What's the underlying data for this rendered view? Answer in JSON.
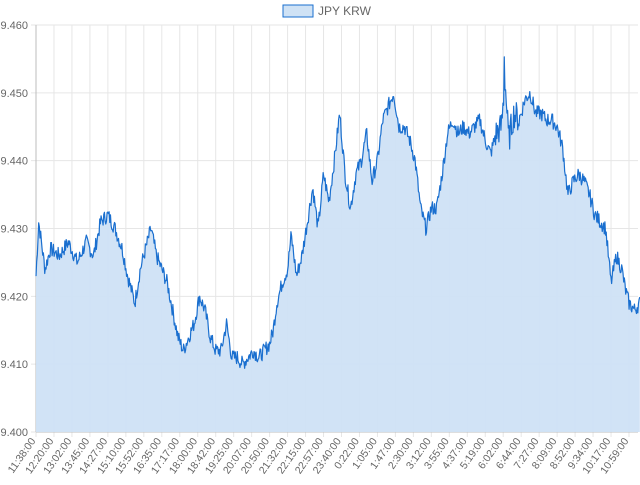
{
  "chart_data": {
    "type": "area",
    "legend": {
      "label": "JPY KRW",
      "position": "top-center"
    },
    "colors": {
      "line": "#1a6fcf",
      "fill": "#cfe2f5",
      "grid": "#e6e6e6",
      "text": "#666666"
    },
    "ylim": [
      9.4,
      9.46
    ],
    "y_ticks": [
      "9.460",
      "9.450",
      "9.440",
      "9.430",
      "9.420",
      "9.410",
      "9.400"
    ],
    "x_ticks": [
      "11:38:00",
      "12:20:00",
      "13:02:00",
      "13:45:00",
      "14:27:00",
      "15:10:00",
      "15:52:00",
      "16:35:00",
      "17:17:00",
      "18:00:00",
      "18:42:00",
      "19:25:00",
      "20:07:00",
      "20:50:00",
      "21:32:00",
      "22:15:00",
      "22:57:00",
      "23:40:00",
      "0:22:00",
      "1:05:00",
      "1:47:00",
      "2:30:00",
      "3:12:00",
      "3:55:00",
      "4:37:00",
      "5:19:00",
      "6:02:00",
      "6:44:00",
      "7:27:00",
      "8:09:00",
      "8:52:00",
      "9:34:00",
      "10:17:00",
      "10:59:00"
    ],
    "grid": true,
    "series": [
      {
        "name": "JPY KRW",
        "keypoints": [
          [
            0,
            9.423
          ],
          [
            0.15,
            9.431
          ],
          [
            0.3,
            9.428
          ],
          [
            0.5,
            9.424
          ],
          [
            0.8,
            9.427
          ],
          [
            1.3,
            9.426
          ],
          [
            1.8,
            9.428
          ],
          [
            2.3,
            9.425
          ],
          [
            2.8,
            9.428
          ],
          [
            3.2,
            9.426
          ],
          [
            3.6,
            9.431
          ],
          [
            4.0,
            9.432
          ],
          [
            4.4,
            9.43
          ],
          [
            4.8,
            9.427
          ],
          [
            5.1,
            9.423
          ],
          [
            5.5,
            9.419
          ],
          [
            5.8,
            9.424
          ],
          [
            6.1,
            9.427
          ],
          [
            6.4,
            9.43
          ],
          [
            6.7,
            9.426
          ],
          [
            7.0,
            9.424
          ],
          [
            7.3,
            9.422
          ],
          [
            7.6,
            9.418
          ],
          [
            7.9,
            9.414
          ],
          [
            8.2,
            9.412
          ],
          [
            8.5,
            9.414
          ],
          [
            8.8,
            9.416
          ],
          [
            9.1,
            9.42
          ],
          [
            9.4,
            9.418
          ],
          [
            9.7,
            9.414
          ],
          [
            10.0,
            9.412
          ],
          [
            10.3,
            9.412
          ],
          [
            10.6,
            9.416
          ],
          [
            10.9,
            9.411
          ],
          [
            11.2,
            9.411
          ],
          [
            11.5,
            9.41
          ],
          [
            11.8,
            9.411
          ],
          [
            12.1,
            9.412
          ],
          [
            12.4,
            9.411
          ],
          [
            12.7,
            9.412
          ],
          [
            13.0,
            9.413
          ],
          [
            13.2,
            9.415
          ],
          [
            13.4,
            9.419
          ],
          [
            13.7,
            9.422
          ],
          [
            14.0,
            9.424
          ],
          [
            14.2,
            9.429
          ],
          [
            14.5,
            9.423
          ],
          [
            14.8,
            9.426
          ],
          [
            15.1,
            9.431
          ],
          [
            15.4,
            9.436
          ],
          [
            15.7,
            9.43
          ],
          [
            16.0,
            9.438
          ],
          [
            16.3,
            9.434
          ],
          [
            16.6,
            9.44
          ],
          [
            16.9,
            9.447
          ],
          [
            17.2,
            9.438
          ],
          [
            17.5,
            9.433
          ],
          [
            17.8,
            9.438
          ],
          [
            18.1,
            9.44
          ],
          [
            18.4,
            9.444
          ],
          [
            18.7,
            9.437
          ],
          [
            19.0,
            9.44
          ],
          [
            19.3,
            9.446
          ],
          [
            19.6,
            9.448
          ],
          [
            19.9,
            9.45
          ],
          [
            20.2,
            9.445
          ],
          [
            20.5,
            9.445
          ],
          [
            20.8,
            9.443
          ],
          [
            21.1,
            9.44
          ],
          [
            21.4,
            9.433
          ],
          [
            21.7,
            9.43
          ],
          [
            22.0,
            9.433
          ],
          [
            22.3,
            9.433
          ],
          [
            22.6,
            9.438
          ],
          [
            22.9,
            9.444
          ],
          [
            23.2,
            9.446
          ],
          [
            23.5,
            9.444
          ],
          [
            23.8,
            9.445
          ],
          [
            24.1,
            9.444
          ],
          [
            24.4,
            9.445
          ],
          [
            24.7,
            9.446
          ],
          [
            25.0,
            9.443
          ],
          [
            25.3,
            9.441
          ],
          [
            25.6,
            9.444
          ],
          [
            25.9,
            9.445
          ],
          [
            26.1,
            9.452
          ],
          [
            26.3,
            9.443
          ],
          [
            26.6,
            9.447
          ],
          [
            26.9,
            9.446
          ],
          [
            27.2,
            9.449
          ],
          [
            27.5,
            9.45
          ],
          [
            27.8,
            9.447
          ],
          [
            28.1,
            9.447
          ],
          [
            28.4,
            9.446
          ],
          [
            28.7,
            9.446
          ],
          [
            29.0,
            9.445
          ],
          [
            29.3,
            9.442
          ],
          [
            29.6,
            9.435
          ],
          [
            29.9,
            9.437
          ],
          [
            30.2,
            9.438
          ],
          [
            30.5,
            9.437
          ],
          [
            30.8,
            9.435
          ],
          [
            31.1,
            9.432
          ],
          [
            31.4,
            9.431
          ],
          [
            31.7,
            9.43
          ],
          [
            32.0,
            9.422
          ],
          [
            32.3,
            9.426
          ],
          [
            32.6,
            9.424
          ],
          [
            32.8,
            9.421
          ],
          [
            33.0,
            9.419
          ],
          [
            33.3,
            9.418
          ],
          [
            33.6,
            9.419
          ]
        ]
      }
    ]
  }
}
